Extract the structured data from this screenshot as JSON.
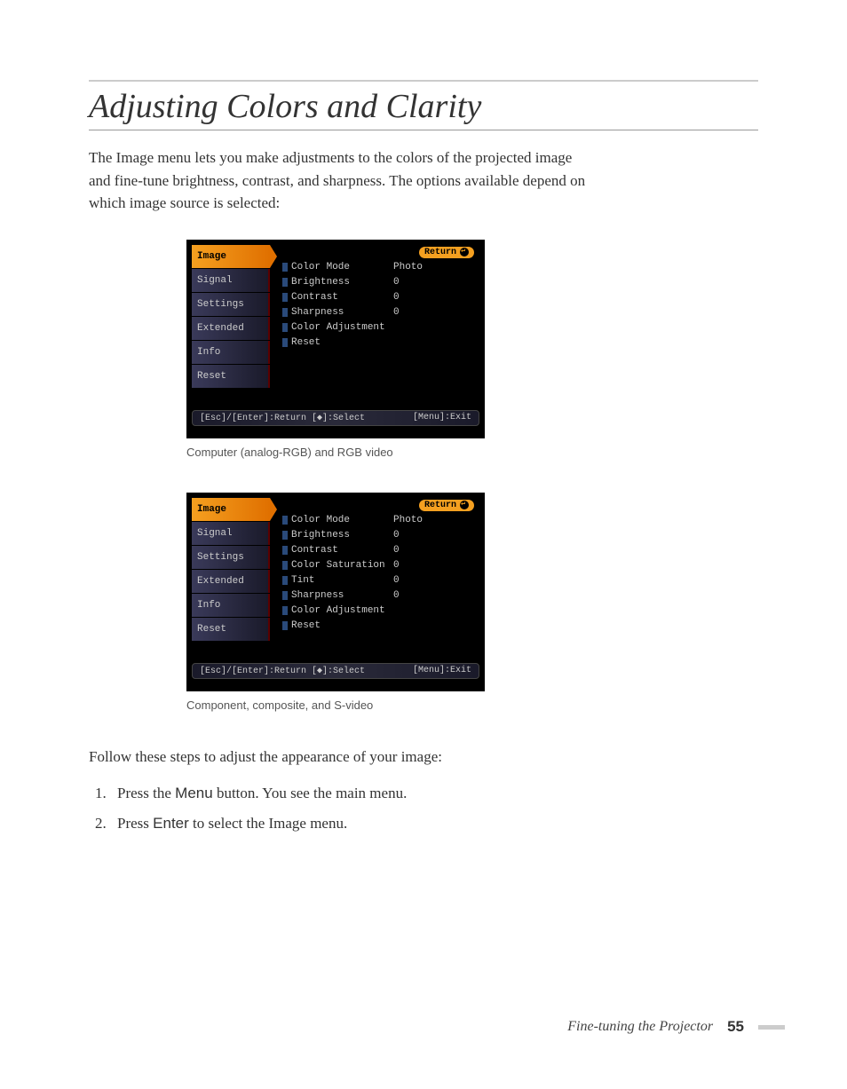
{
  "title": "Adjusting Colors and Clarity",
  "intro": "The Image menu lets you make adjustments to the colors of the projected image and fine-tune brightness, contrast, and sharpness. The options available depend on which image source is selected:",
  "menu1": {
    "sidebar": [
      "Image",
      "Signal",
      "Settings",
      "Extended",
      "Info",
      "Reset"
    ],
    "selected": 0,
    "return": "Return",
    "options": [
      {
        "label": "Color Mode",
        "value": "Photo"
      },
      {
        "label": "Brightness",
        "value": "0"
      },
      {
        "label": "Contrast",
        "value": "0"
      },
      {
        "label": "Sharpness",
        "value": "0"
      },
      {
        "label": "Color Adjustment",
        "value": ""
      },
      {
        "label": "Reset",
        "value": ""
      }
    ],
    "footer_left": "[Esc]/[Enter]:Return [◆]:Select",
    "footer_right": "[Menu]:Exit",
    "caption": "Computer (analog-RGB) and RGB video"
  },
  "menu2": {
    "sidebar": [
      "Image",
      "Signal",
      "Settings",
      "Extended",
      "Info",
      "Reset"
    ],
    "selected": 0,
    "return": "Return",
    "options": [
      {
        "label": "Color Mode",
        "value": "Photo"
      },
      {
        "label": "Brightness",
        "value": "0"
      },
      {
        "label": "Contrast",
        "value": "0"
      },
      {
        "label": "Color Saturation",
        "value": "0"
      },
      {
        "label": "Tint",
        "value": "0"
      },
      {
        "label": "Sharpness",
        "value": "0"
      },
      {
        "label": "Color Adjustment",
        "value": ""
      },
      {
        "label": "Reset",
        "value": ""
      }
    ],
    "footer_left": "[Esc]/[Enter]:Return [◆]:Select",
    "footer_right": "[Menu]:Exit",
    "caption": "Component, composite, and S-video"
  },
  "follow": "Follow these steps to adjust the appearance of your image:",
  "steps": [
    {
      "pre": "Press the ",
      "btn": "Menu",
      "post": " button. You see the main menu."
    },
    {
      "pre": "Press ",
      "btn": "Enter",
      "post": " to select the Image menu."
    }
  ],
  "footer_section": "Fine-tuning the Projector",
  "footer_page": "55"
}
